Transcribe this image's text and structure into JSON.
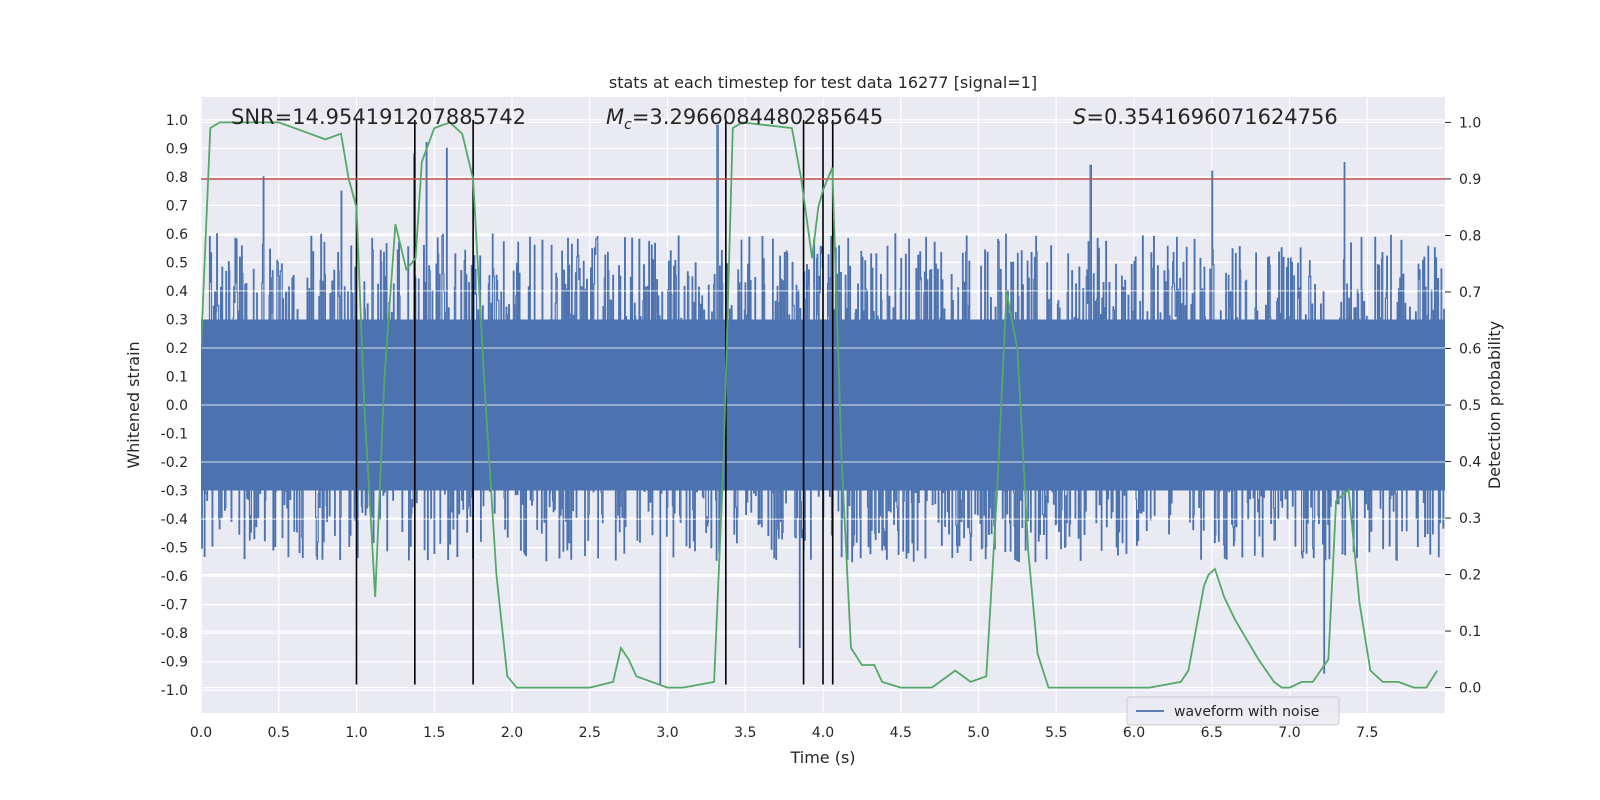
{
  "chart_data": {
    "type": "line",
    "title": "stats at each timestep for test data 16277 [signal=1]",
    "xlabel": "Time (s)",
    "ylabel": "Whitened strain",
    "ylabel_right": "Detection probability",
    "xlim": [
      0.0,
      8.0
    ],
    "ylim": [
      -1.08,
      1.08
    ],
    "ylim_right": [
      -0.045,
      1.045
    ],
    "x_ticks": [
      "0.0",
      "0.5",
      "1.0",
      "1.5",
      "2.0",
      "2.5",
      "3.0",
      "3.5",
      "4.0",
      "4.5",
      "5.0",
      "5.5",
      "6.0",
      "6.5",
      "7.0",
      "7.5"
    ],
    "y_ticks": [
      "1.0",
      "0.9",
      "0.8",
      "0.7",
      "0.6",
      "0.5",
      "0.4",
      "0.3",
      "0.2",
      "0.1",
      "0.0",
      "-0.1",
      "-0.2",
      "-0.3",
      "-0.4",
      "-0.5",
      "-0.6",
      "-0.7",
      "-0.8",
      "-0.9",
      "-1.0"
    ],
    "y_right_ticks": [
      "1.0",
      "0.9",
      "0.8",
      "0.7",
      "0.6",
      "0.5",
      "0.4",
      "0.3",
      "0.2",
      "0.1",
      "0.0"
    ],
    "annotations": {
      "snr": "SNR=14.954191207885742",
      "mc_symbol": "M",
      "mc_sub": "c",
      "mc_value": "=3.2966084480285645",
      "s_symbol": "S",
      "s_value": "=0.3541696071624756"
    },
    "legend": {
      "entry": "waveform with noise",
      "position": "lower-right"
    },
    "threshold_line": {
      "value": 0.9,
      "axis": "right",
      "color": "#c44e52"
    },
    "vertical_lines": [
      1.0,
      1.375,
      1.75,
      3.375,
      3.875,
      4.0,
      4.0625
    ],
    "vertical_line_range": [
      -0.98,
      1.0
    ],
    "waveform": {
      "name": "waveform with noise",
      "color": "#4c72b0",
      "core_amplitude": 0.3,
      "typical_peak_max": 0.6,
      "typical_trough_min": -0.55,
      "notable_spikes": [
        {
          "t": 0.1,
          "v": 0.6
        },
        {
          "t": 0.4,
          "v": 0.8
        },
        {
          "t": 0.9,
          "v": 0.75
        },
        {
          "t": 1.37,
          "v": 0.88
        },
        {
          "t": 1.45,
          "v": 0.92
        },
        {
          "t": 1.58,
          "v": 0.9
        },
        {
          "t": 2.95,
          "v": -0.98
        },
        {
          "t": 3.32,
          "v": 0.98
        },
        {
          "t": 3.85,
          "v": -0.85
        },
        {
          "t": 5.72,
          "v": 0.84
        },
        {
          "t": 6.5,
          "v": 0.82
        },
        {
          "t": 7.22,
          "v": -0.94
        },
        {
          "t": 7.35,
          "v": 0.85
        }
      ]
    },
    "detection_probability": {
      "name": "Detection probability",
      "color": "#55a868",
      "x": [
        0.0,
        0.06,
        0.12,
        0.2,
        0.5,
        0.7,
        0.8,
        0.9,
        0.95,
        1.0,
        1.05,
        1.12,
        1.18,
        1.25,
        1.32,
        1.38,
        1.42,
        1.5,
        1.6,
        1.68,
        1.75,
        1.82,
        1.9,
        1.97,
        2.03,
        2.2,
        2.5,
        2.65,
        2.7,
        2.75,
        2.8,
        3.0,
        3.1,
        3.3,
        3.36,
        3.42,
        3.48,
        3.8,
        3.86,
        3.93,
        3.97,
        4.0,
        4.06,
        4.12,
        4.18,
        4.25,
        4.33,
        4.38,
        4.5,
        4.7,
        4.85,
        4.95,
        5.05,
        5.12,
        5.18,
        5.25,
        5.32,
        5.38,
        5.45,
        5.5,
        5.6,
        6.1,
        6.3,
        6.35,
        6.45,
        6.48,
        6.52,
        6.58,
        6.65,
        6.8,
        6.9,
        6.95,
        7.0,
        7.08,
        7.15,
        7.25,
        7.3,
        7.38,
        7.45,
        7.52,
        7.6,
        7.7,
        7.8,
        7.88,
        7.95
      ],
      "y": [
        0.6,
        0.99,
        1.0,
        1.0,
        1.0,
        0.98,
        0.97,
        0.98,
        0.9,
        0.85,
        0.5,
        0.16,
        0.55,
        0.82,
        0.74,
        0.76,
        0.93,
        0.99,
        1.0,
        0.98,
        0.9,
        0.55,
        0.2,
        0.02,
        0.0,
        0.0,
        0.0,
        0.01,
        0.07,
        0.05,
        0.02,
        0.0,
        0.0,
        0.01,
        0.4,
        0.99,
        1.0,
        0.99,
        0.9,
        0.76,
        0.85,
        0.88,
        0.92,
        0.4,
        0.07,
        0.04,
        0.04,
        0.01,
        0.0,
        0.0,
        0.03,
        0.01,
        0.02,
        0.35,
        0.7,
        0.6,
        0.24,
        0.06,
        0.0,
        0.0,
        0.0,
        0.0,
        0.01,
        0.03,
        0.18,
        0.2,
        0.21,
        0.16,
        0.12,
        0.05,
        0.01,
        0.0,
        0.0,
        0.01,
        0.01,
        0.05,
        0.33,
        0.35,
        0.15,
        0.03,
        0.01,
        0.01,
        0.0,
        0.0,
        0.03
      ]
    }
  }
}
